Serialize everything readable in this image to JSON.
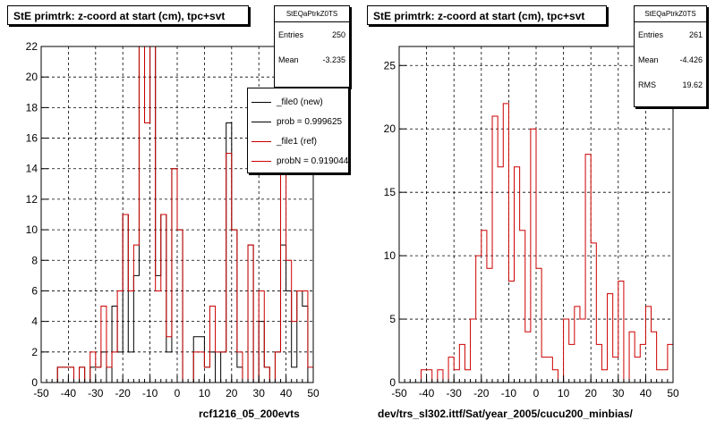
{
  "colors": {
    "new": "#000000",
    "ref": "#cc0000"
  },
  "bottom_text": {
    "left": "rcf1216_05_200evts",
    "right": "dev/trs_sl302.ittf/Sat/year_2005/cucu200_minbias/"
  },
  "chart_data": [
    {
      "type": "histogram",
      "title": "StE primtrk: z-coord at start (cm), tpc+svt",
      "xlim": [
        -50,
        50
      ],
      "ylim": [
        0,
        22
      ],
      "xticks": [
        -50,
        -40,
        -30,
        -20,
        -10,
        0,
        10,
        20,
        30,
        40,
        50
      ],
      "yticks": [
        0,
        2,
        4,
        6,
        8,
        10,
        12,
        14,
        16,
        18,
        20,
        22
      ],
      "grid": true,
      "bin_edges_start": -50,
      "bin_width": 2,
      "stats": {
        "name": "StEQaPtrkZ0TS",
        "entries_label": "Entries",
        "entries": "250",
        "mean_label": "Mean",
        "mean": "-3.235"
      },
      "legend": [
        {
          "label": "_file0 (new)",
          "color": "#000000"
        },
        {
          "label": "prob = 0.999625",
          "color": "#000000"
        },
        {
          "label": "_file1 (ref)",
          "color": "#cc0000"
        },
        {
          "label": "probN = 0.919044",
          "color": "#cc0000"
        }
      ],
      "series": [
        {
          "name": "_file0 (new)",
          "color": "#000000",
          "values": [
            0,
            0,
            0,
            1,
            1,
            1,
            0,
            1,
            0,
            1,
            1,
            2,
            0,
            5,
            2,
            11,
            2,
            7,
            22,
            17,
            22,
            7,
            11,
            2,
            14,
            10,
            0,
            0,
            3,
            3,
            1,
            2,
            0,
            2,
            17,
            10,
            1,
            0,
            9,
            0,
            4,
            1,
            0,
            2,
            9,
            6,
            1,
            6,
            5,
            0,
            1,
            0,
            2,
            0,
            0,
            0,
            1,
            0,
            1,
            0,
            0
          ]
        },
        {
          "name": "_file1 (ref)",
          "color": "#cc0000",
          "values": [
            0,
            0,
            0,
            1,
            1,
            1,
            0,
            1,
            0,
            2,
            1,
            5,
            1,
            2,
            6,
            11,
            6,
            9,
            22,
            17,
            22,
            6,
            11,
            3,
            14,
            10,
            0,
            0,
            2,
            2,
            1,
            5,
            2,
            2,
            15,
            10,
            2,
            0,
            9,
            0,
            6,
            1,
            0,
            2,
            14,
            8,
            4,
            6,
            6,
            1,
            2,
            0,
            1,
            0,
            0,
            0,
            0,
            0,
            0,
            0,
            0
          ]
        }
      ]
    },
    {
      "type": "histogram",
      "title": "StE primtrk: z-coord at start (cm), tpc+svt",
      "xlim": [
        -50,
        50
      ],
      "ylim": [
        0,
        26.5
      ],
      "xticks": [
        -50,
        -40,
        -30,
        -20,
        -10,
        0,
        10,
        20,
        30,
        40,
        50
      ],
      "yticks": [
        0,
        5,
        10,
        15,
        20,
        25
      ],
      "grid": true,
      "bin_edges_start": -50,
      "bin_width": 2,
      "stats": {
        "name": "StEQaPtrkZ0TS",
        "entries_label": "Entries",
        "entries": "261",
        "mean_label": "Mean",
        "mean": "-4.426",
        "rms_label": "RMS",
        "rms": "19.62"
      },
      "series": [
        {
          "name": "_file1 (ref)",
          "color": "#cc0000",
          "values": [
            0,
            0,
            0,
            0,
            1,
            1,
            0,
            1,
            0,
            2,
            1,
            3,
            1,
            5,
            10,
            12,
            9,
            21,
            17,
            22,
            8,
            17,
            12,
            4,
            20,
            9,
            2,
            2,
            1,
            0,
            5,
            3,
            6,
            5,
            18,
            11,
            3,
            1,
            7,
            2,
            8,
            0,
            4,
            2,
            3,
            6,
            4,
            1,
            1,
            3,
            1,
            0,
            0,
            0,
            0,
            0,
            0,
            0,
            0,
            0,
            0
          ]
        }
      ]
    }
  ]
}
